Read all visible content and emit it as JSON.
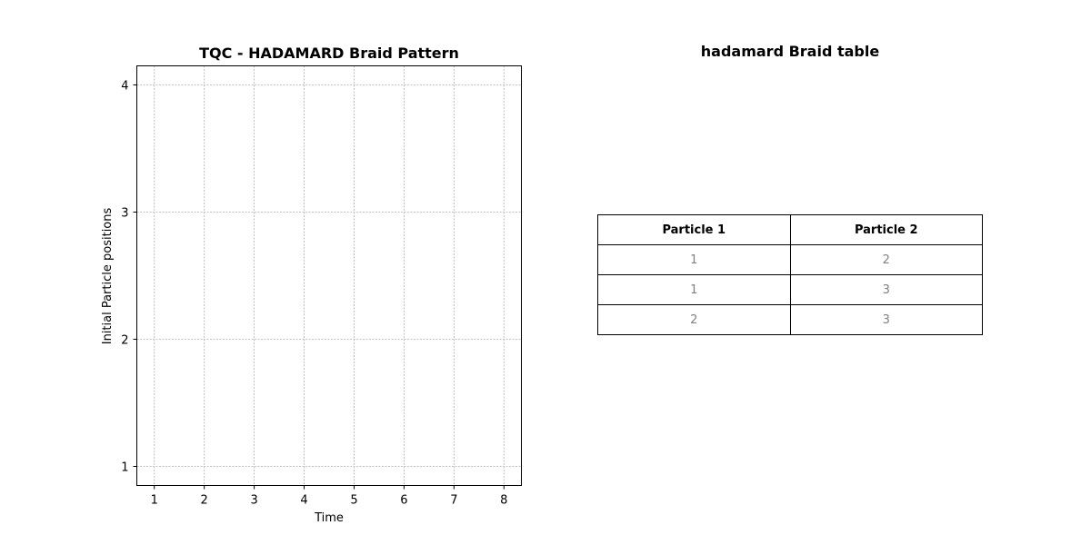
{
  "chart_data": [
    {
      "type": "line",
      "title": "TQC - HADAMARD Braid Pattern",
      "xlabel": "Time",
      "ylabel": "Initial Particle positions",
      "xlim": [
        0.65,
        8.35
      ],
      "ylim": [
        0.85,
        4.15
      ],
      "xticks": [
        1,
        2,
        3,
        4,
        5,
        6,
        7,
        8
      ],
      "yticks": [
        1,
        2,
        3,
        4
      ],
      "grid": true,
      "series": []
    },
    {
      "type": "table",
      "title": "hadamard Braid table",
      "columns": [
        "Particle 1",
        "Particle 2"
      ],
      "rows": [
        [
          "1",
          "2"
        ],
        [
          "1",
          "3"
        ],
        [
          "2",
          "3"
        ]
      ]
    }
  ],
  "colors": {
    "grid": "#b0b0b0",
    "cell_text": "#808080",
    "border": "#000000"
  }
}
